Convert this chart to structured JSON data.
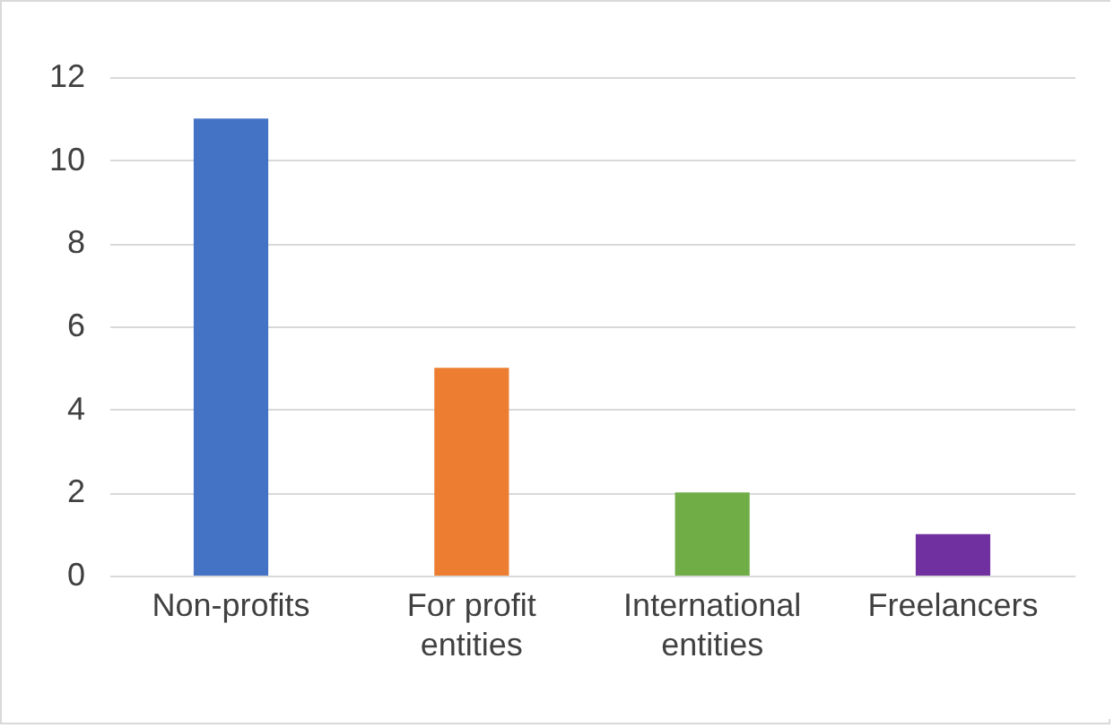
{
  "chart_data": {
    "type": "bar",
    "categories": [
      "Non-profits",
      "For profit entities",
      "International entities",
      "Freelancers"
    ],
    "values": [
      11,
      5,
      2,
      1
    ],
    "colors": [
      "#4472c4",
      "#ed7d31",
      "#70ad47",
      "#7030a0"
    ],
    "ylim": [
      0,
      12
    ],
    "yticks": [
      0,
      2,
      4,
      6,
      8,
      10,
      12
    ],
    "grid": "y"
  }
}
